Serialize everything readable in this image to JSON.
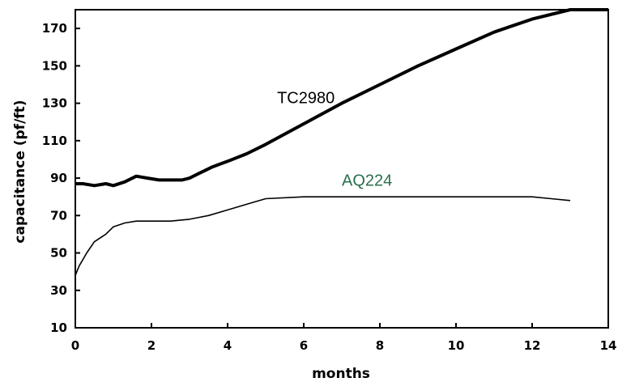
{
  "chart_data": {
    "type": "line",
    "title": "",
    "xlabel": "months",
    "ylabel": "capacitance (pf/ft)",
    "xlim": [
      0,
      14
    ],
    "ylim": [
      10,
      180
    ],
    "xticks": [
      0,
      2,
      4,
      6,
      8,
      10,
      12,
      14
    ],
    "yticks": [
      10,
      30,
      50,
      70,
      90,
      110,
      130,
      150,
      170
    ],
    "grid": false,
    "legend": "none",
    "series": [
      {
        "name": "TC2980",
        "color": "#000000",
        "x": [
          0,
          0.2,
          0.5,
          0.8,
          1.0,
          1.3,
          1.6,
          1.9,
          2.2,
          2.5,
          2.8,
          3.0,
          3.3,
          3.6,
          4.0,
          4.5,
          5.0,
          6.0,
          7.0,
          8.0,
          9.0,
          10.0,
          11.0,
          12.0,
          13.0,
          13.4,
          14.0
        ],
        "y": [
          87,
          87,
          86,
          87,
          86,
          88,
          91,
          90,
          89,
          89,
          89,
          90,
          93,
          96,
          99,
          103,
          108,
          119,
          130,
          140,
          150,
          159,
          168,
          175,
          180,
          181,
          181
        ]
      },
      {
        "name": "AQ224",
        "color": "#2a6e4e",
        "x": [
          0,
          0.1,
          0.3,
          0.5,
          0.8,
          1.0,
          1.3,
          1.6,
          2.0,
          2.5,
          3.0,
          3.5,
          4.0,
          4.5,
          5.0,
          6.0,
          7.0,
          8.0,
          9.0,
          10.0,
          11.0,
          12.0,
          12.5,
          13.0
        ],
        "y": [
          38,
          43,
          50,
          56,
          60,
          64,
          66,
          67,
          67,
          67,
          68,
          70,
          73,
          76,
          79,
          80,
          80,
          80,
          80,
          80,
          80,
          80,
          79,
          78
        ]
      }
    ]
  }
}
